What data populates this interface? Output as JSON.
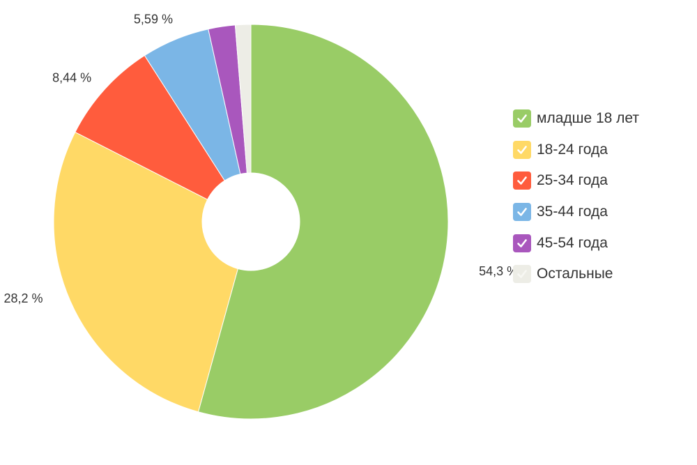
{
  "chart_data": {
    "type": "pie",
    "donut": true,
    "legend_position": "right",
    "categories": [
      "младше 18 лет",
      "18-24 года",
      "25-34 года",
      "35-44 года",
      "45-54 года",
      "Остальные"
    ],
    "values": [
      54.3,
      28.2,
      8.44,
      5.59,
      2.2,
      1.27
    ],
    "value_labels": [
      "54,3 %",
      "28,2 %",
      "8,44 %",
      "5,59 %",
      "",
      ""
    ],
    "colors": [
      "#99CC66",
      "#FFD966",
      "#FF5C3D",
      "#7BB6E6",
      "#A957BD",
      "#EDEDE6"
    ],
    "legend_checked": [
      true,
      true,
      true,
      true,
      true,
      false
    ]
  }
}
